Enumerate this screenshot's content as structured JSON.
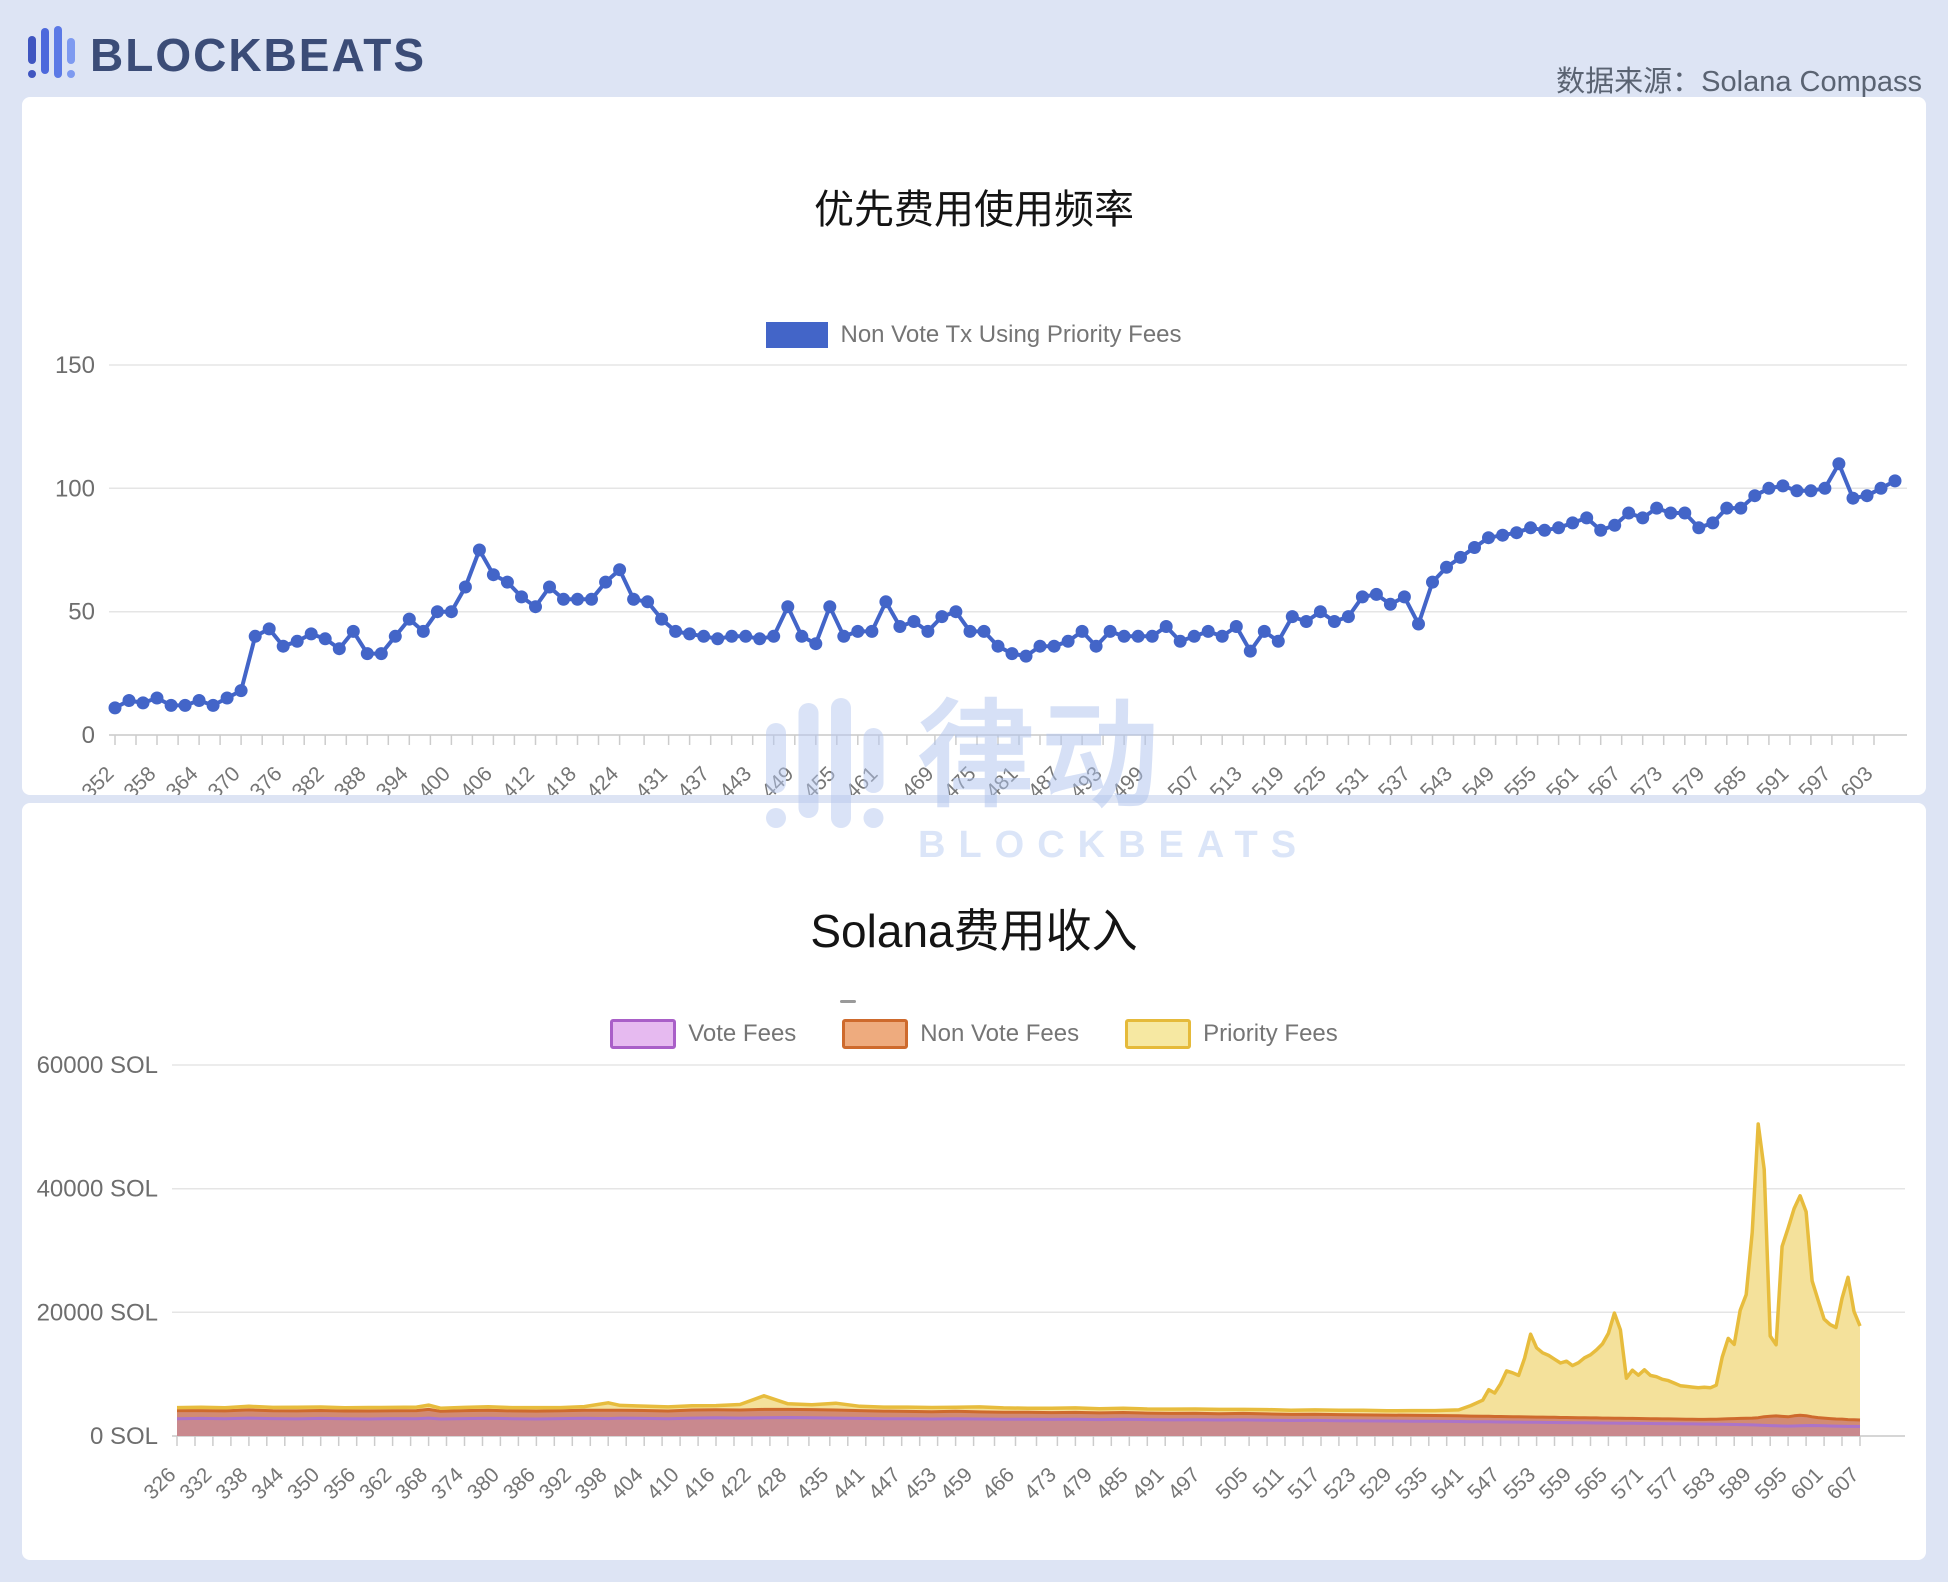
{
  "header": {
    "brand": "BLOCKBEATS",
    "source_label": "数据来源：Solana Compass",
    "brand_color": "#3b4c77"
  },
  "watermark": {
    "cn": "律动",
    "en": "BLOCKBEATS"
  },
  "chart_data": [
    {
      "type": "line",
      "title": "优先费用使用频率",
      "legend": [
        "Non Vote Tx Using Priority Fees"
      ],
      "color": "#4365c8",
      "grid": true,
      "legend_position": "top-center",
      "ylim": [
        0,
        150
      ],
      "yticks": [
        0,
        50,
        100,
        150
      ],
      "x_start": 352,
      "x_step": 2,
      "x_labels": [
        "352",
        "358",
        "364",
        "370",
        "376",
        "382",
        "388",
        "394",
        "400",
        "406",
        "412",
        "418",
        "424",
        "431",
        "437",
        "443",
        "449",
        "455",
        "461",
        "469",
        "475",
        "481",
        "487",
        "493",
        "499",
        "507",
        "513",
        "519",
        "525",
        "531",
        "537",
        "543",
        "549",
        "555",
        "561",
        "567",
        "573",
        "579",
        "585",
        "591",
        "597",
        "603"
      ],
      "values": [
        11,
        14,
        13,
        15,
        12,
        12,
        14,
        12,
        15,
        18,
        40,
        43,
        36,
        38,
        41,
        39,
        35,
        42,
        33,
        33,
        40,
        47,
        42,
        50,
        50,
        60,
        75,
        65,
        62,
        56,
        52,
        60,
        55,
        55,
        55,
        62,
        67,
        55,
        54,
        47,
        42,
        41,
        40,
        39,
        40,
        40,
        39,
        40,
        52,
        40,
        37,
        52,
        40,
        42,
        42,
        54,
        44,
        46,
        42,
        48,
        50,
        42,
        42,
        36,
        33,
        32,
        36,
        36,
        38,
        42,
        36,
        42,
        40,
        40,
        40,
        44,
        38,
        40,
        42,
        40,
        44,
        34,
        42,
        38,
        48,
        46,
        50,
        46,
        48,
        56,
        57,
        53,
        56,
        45,
        62,
        68,
        72,
        76,
        80,
        81,
        82,
        84,
        83,
        84,
        86,
        88,
        83,
        85,
        90,
        88,
        92,
        90,
        90,
        84,
        86,
        92,
        92,
        97,
        100,
        101,
        99,
        99,
        100,
        110,
        96,
        97,
        100,
        103
      ]
    },
    {
      "type": "area-stacked",
      "title": "Solana费用收入",
      "unit": "SOL",
      "legend": [
        {
          "label": "Vote Fees",
          "fill": "#e6baf0",
          "stroke": "#a95fc8"
        },
        {
          "label": "Non Vote Fees",
          "fill": "#eeab7e",
          "stroke": "#ce6a2d"
        },
        {
          "label": "Priority Fees",
          "fill": "#f6e8a2",
          "stroke": "#e5ba3a"
        }
      ],
      "area_colors": {
        "vote_fill": "#c9898e",
        "vote_stroke": "#ab74c9",
        "nonvote_fill": "#d28b73",
        "nonvote_stroke": "#ce6a2d",
        "priority_fill": "#f4e19b",
        "priority_stroke": "#e7bc3d"
      },
      "ylim": [
        0,
        60000
      ],
      "ytick_labels": [
        "0 SOL",
        "20000 SOL",
        "40000 SOL",
        "60000 SOL"
      ],
      "x_labels": [
        "326",
        "332",
        "338",
        "344",
        "350",
        "356",
        "362",
        "368",
        "374",
        "380",
        "386",
        "392",
        "398",
        "404",
        "410",
        "416",
        "422",
        "428",
        "435",
        "441",
        "447",
        "453",
        "459",
        "466",
        "473",
        "479",
        "485",
        "491",
        "497",
        "505",
        "511",
        "517",
        "523",
        "529",
        "535",
        "541",
        "547",
        "553",
        "559",
        "565",
        "571",
        "577",
        "583",
        "589",
        "595",
        "601",
        "607"
      ],
      "points": {
        "x": [
          326,
          330,
          334,
          338,
          342,
          346,
          350,
          354,
          358,
          362,
          366,
          368,
          370,
          374,
          378,
          382,
          386,
          390,
          394,
          398,
          400,
          404,
          408,
          412,
          416,
          420,
          424,
          428,
          432,
          436,
          440,
          444,
          448,
          452,
          456,
          460,
          464,
          468,
          472,
          476,
          480,
          484,
          488,
          492,
          496,
          500,
          504,
          508,
          512,
          516,
          520,
          524,
          528,
          532,
          536,
          540,
          542,
          544,
          545,
          546,
          547,
          548,
          549,
          550,
          551,
          552,
          553,
          554,
          555,
          556,
          557,
          558,
          559,
          560,
          561,
          562,
          563,
          564,
          565,
          566,
          567,
          568,
          569,
          570,
          571,
          572,
          573,
          574,
          575,
          576,
          577,
          578,
          579,
          580,
          581,
          582,
          583,
          584,
          585,
          586,
          587,
          588,
          589,
          590,
          591,
          592,
          593,
          594,
          595,
          596,
          597,
          598,
          599,
          600,
          601,
          602,
          603,
          604,
          605,
          606,
          607
        ],
        "vote": [
          2800,
          2850,
          2780,
          2900,
          2820,
          2760,
          2850,
          2800,
          2750,
          2820,
          2780,
          2900,
          2750,
          2820,
          2860,
          2800,
          2750,
          2820,
          2880,
          2820,
          2900,
          2850,
          2800,
          2900,
          2950,
          2900,
          2950,
          3000,
          2950,
          2900,
          2850,
          2800,
          2780,
          2750,
          2800,
          2750,
          2700,
          2720,
          2680,
          2700,
          2650,
          2700,
          2650,
          2600,
          2620,
          2580,
          2600,
          2550,
          2500,
          2520,
          2480,
          2450,
          2420,
          2400,
          2380,
          2350,
          2320,
          2300,
          2290,
          2280,
          2270,
          2260,
          2250,
          2240,
          2230,
          2220,
          2210,
          2200,
          2190,
          2180,
          2170,
          2160,
          2150,
          2140,
          2130,
          2120,
          2110,
          2100,
          2090,
          2080,
          2070,
          2060,
          2050,
          2040,
          2030,
          2020,
          2010,
          2000,
          1990,
          1980,
          1970,
          1960,
          1950,
          1940,
          1930,
          1920,
          1910,
          1900,
          1880,
          1860,
          1840,
          1820,
          1800,
          1760,
          1720,
          1680,
          1650,
          1620,
          1600,
          1620,
          1650,
          1680,
          1700,
          1680,
          1650,
          1620,
          1600,
          1580,
          1560,
          1550,
          1540
        ],
        "non_vote": [
          1300,
          1250,
          1280,
          1320,
          1260,
          1300,
          1280,
          1250,
          1300,
          1270,
          1320,
          1400,
          1250,
          1280,
          1300,
          1260,
          1280,
          1250,
          1300,
          1350,
          1250,
          1280,
          1250,
          1300,
          1280,
          1300,
          1350,
          1300,
          1320,
          1300,
          1250,
          1220,
          1200,
          1180,
          1200,
          1150,
          1150,
          1120,
          1100,
          1120,
          1080,
          1100,
          1060,
          1050,
          1060,
          1020,
          1050,
          1020,
          1000,
          1000,
          980,
          970,
          960,
          950,
          930,
          920,
          900,
          890,
          890,
          880,
          880,
          870,
          870,
          860,
          860,
          850,
          850,
          850,
          840,
          840,
          830,
          830,
          830,
          820,
          820,
          810,
          810,
          800,
          800,
          800,
          800,
          790,
          790,
          790,
          780,
          780,
          780,
          770,
          770,
          770,
          760,
          760,
          760,
          750,
          750,
          780,
          800,
          850,
          900,
          950,
          1000,
          1050,
          1100,
          1200,
          1400,
          1500,
          1600,
          1550,
          1500,
          1650,
          1700,
          1600,
          1400,
          1300,
          1250,
          1200,
          1150,
          1150,
          1100,
          1080,
          1050
        ],
        "priority": [
          500,
          550,
          520,
          580,
          540,
          600,
          560,
          520,
          560,
          540,
          580,
          700,
          500,
          520,
          560,
          540,
          560,
          520,
          580,
          1200,
          800,
          700,
          650,
          700,
          680,
          900,
          2200,
          900,
          800,
          1100,
          700,
          650,
          700,
          680,
          650,
          800,
          700,
          650,
          700,
          720,
          680,
          700,
          650,
          700,
          680,
          700,
          650,
          700,
          680,
          700,
          720,
          750,
          700,
          750,
          800,
          950,
          1700,
          2600,
          4300,
          3800,
          5300,
          7400,
          7100,
          6700,
          9500,
          13400,
          11200,
          10400,
          10000,
          9400,
          8800,
          9100,
          8400,
          8900,
          9700,
          10200,
          11000,
          12000,
          13700,
          17000,
          14300,
          6500,
          7800,
          7000,
          7900,
          7000,
          6800,
          6400,
          6200,
          5800,
          5400,
          5300,
          5200,
          5100,
          5200,
          5100,
          5500,
          10000,
          13000,
          12000,
          17500,
          20000,
          30000,
          47500,
          40000,
          13000,
          11500,
          27500,
          30500,
          33500,
          35500,
          33000,
          22000,
          19000,
          16000,
          15200,
          14800,
          19500,
          23000,
          17500,
          15200
        ]
      }
    }
  ]
}
